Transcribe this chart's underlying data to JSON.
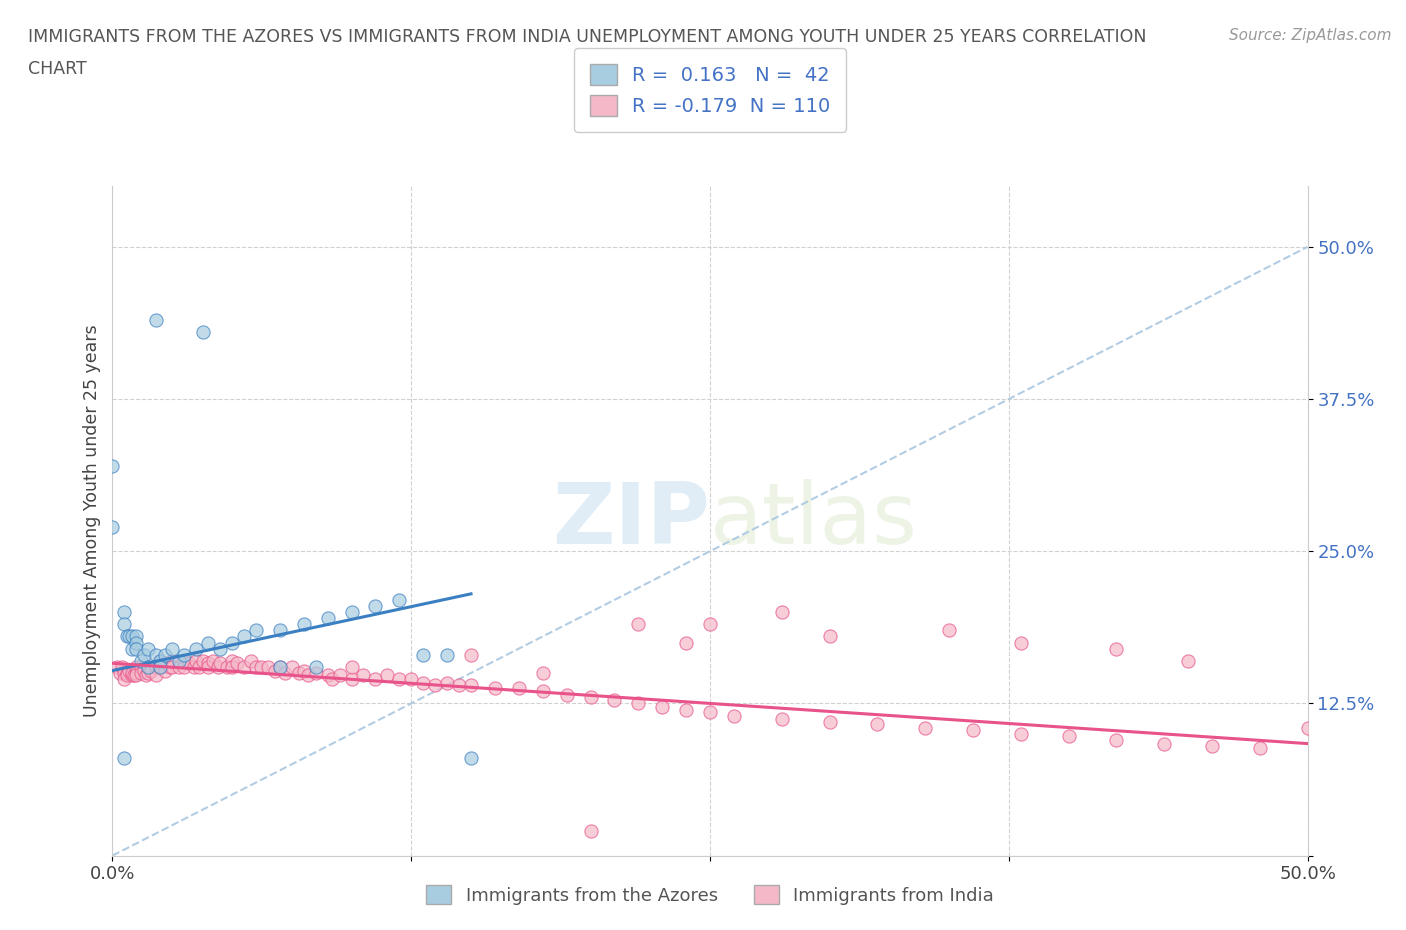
{
  "title_line1": "IMMIGRANTS FROM THE AZORES VS IMMIGRANTS FROM INDIA UNEMPLOYMENT AMONG YOUTH UNDER 25 YEARS CORRELATION",
  "title_line2": "CHART",
  "source": "Source: ZipAtlas.com",
  "ylabel": "Unemployment Among Youth under 25 years",
  "xlim": [
    0.0,
    0.5
  ],
  "ylim": [
    0.0,
    0.55
  ],
  "xticks": [
    0.0,
    0.125,
    0.25,
    0.375,
    0.5
  ],
  "yticks": [
    0.0,
    0.125,
    0.25,
    0.375,
    0.5
  ],
  "legend_label1": "Immigrants from the Azores",
  "legend_label2": "Immigrants from India",
  "R1": 0.163,
  "N1": 42,
  "R2": -0.179,
  "N2": 110,
  "color_blue": "#a8cce0",
  "color_pink": "#f4b8c8",
  "line_blue": "#3a7fc1",
  "line_pink": "#e8538a",
  "dash_color": "#aac8e0",
  "watermark_color": "#cce4f0",
  "azores_x": [
    0.018,
    0.038,
    0.0,
    0.0,
    0.005,
    0.005,
    0.006,
    0.007,
    0.008,
    0.008,
    0.01,
    0.01,
    0.01,
    0.012,
    0.013,
    0.015,
    0.015,
    0.018,
    0.02,
    0.02,
    0.022,
    0.025,
    0.028,
    0.03,
    0.035,
    0.04,
    0.045,
    0.05,
    0.055,
    0.06,
    0.07,
    0.08,
    0.09,
    0.1,
    0.11,
    0.12,
    0.13,
    0.14,
    0.15,
    0.07,
    0.085,
    0.005
  ],
  "azores_y": [
    0.44,
    0.43,
    0.32,
    0.27,
    0.2,
    0.19,
    0.18,
    0.18,
    0.18,
    0.17,
    0.18,
    0.175,
    0.17,
    0.16,
    0.165,
    0.17,
    0.155,
    0.165,
    0.16,
    0.155,
    0.165,
    0.17,
    0.16,
    0.165,
    0.17,
    0.175,
    0.17,
    0.175,
    0.18,
    0.185,
    0.185,
    0.19,
    0.195,
    0.2,
    0.205,
    0.21,
    0.165,
    0.165,
    0.08,
    0.155,
    0.155,
    0.08
  ],
  "india_x": [
    0.002,
    0.003,
    0.004,
    0.005,
    0.005,
    0.006,
    0.006,
    0.007,
    0.008,
    0.008,
    0.009,
    0.01,
    0.01,
    0.01,
    0.012,
    0.012,
    0.013,
    0.014,
    0.015,
    0.015,
    0.016,
    0.018,
    0.018,
    0.02,
    0.02,
    0.022,
    0.022,
    0.024,
    0.025,
    0.025,
    0.028,
    0.03,
    0.03,
    0.032,
    0.034,
    0.035,
    0.036,
    0.038,
    0.04,
    0.04,
    0.042,
    0.044,
    0.045,
    0.048,
    0.05,
    0.05,
    0.052,
    0.055,
    0.058,
    0.06,
    0.062,
    0.065,
    0.068,
    0.07,
    0.072,
    0.075,
    0.078,
    0.08,
    0.082,
    0.085,
    0.09,
    0.092,
    0.095,
    0.1,
    0.105,
    0.11,
    0.115,
    0.12,
    0.125,
    0.13,
    0.135,
    0.14,
    0.145,
    0.15,
    0.16,
    0.17,
    0.18,
    0.19,
    0.2,
    0.21,
    0.22,
    0.23,
    0.24,
    0.25,
    0.26,
    0.28,
    0.3,
    0.32,
    0.34,
    0.36,
    0.38,
    0.4,
    0.42,
    0.44,
    0.46,
    0.48,
    0.25,
    0.28,
    0.3,
    0.35,
    0.38,
    0.42,
    0.45,
    0.5,
    0.2,
    0.22,
    0.24,
    0.15,
    0.18,
    0.1
  ],
  "india_y": [
    0.155,
    0.15,
    0.155,
    0.15,
    0.145,
    0.15,
    0.148,
    0.152,
    0.148,
    0.15,
    0.148,
    0.155,
    0.15,
    0.148,
    0.155,
    0.15,
    0.152,
    0.148,
    0.155,
    0.15,
    0.152,
    0.155,
    0.148,
    0.16,
    0.155,
    0.158,
    0.152,
    0.155,
    0.16,
    0.155,
    0.155,
    0.16,
    0.155,
    0.158,
    0.155,
    0.16,
    0.155,
    0.16,
    0.158,
    0.155,
    0.16,
    0.155,
    0.158,
    0.155,
    0.16,
    0.155,
    0.158,
    0.155,
    0.16,
    0.155,
    0.155,
    0.155,
    0.152,
    0.155,
    0.15,
    0.155,
    0.15,
    0.152,
    0.148,
    0.15,
    0.148,
    0.145,
    0.148,
    0.145,
    0.148,
    0.145,
    0.148,
    0.145,
    0.145,
    0.142,
    0.14,
    0.142,
    0.14,
    0.14,
    0.138,
    0.138,
    0.135,
    0.132,
    0.13,
    0.128,
    0.125,
    0.122,
    0.12,
    0.118,
    0.115,
    0.112,
    0.11,
    0.108,
    0.105,
    0.103,
    0.1,
    0.098,
    0.095,
    0.092,
    0.09,
    0.088,
    0.19,
    0.2,
    0.18,
    0.185,
    0.175,
    0.17,
    0.16,
    0.105,
    0.02,
    0.19,
    0.175,
    0.165,
    0.15,
    0.155
  ],
  "az_line_x": [
    0.0,
    0.15
  ],
  "az_line_y": [
    0.152,
    0.215
  ],
  "ind_line_x": [
    0.0,
    0.5
  ],
  "ind_line_y": [
    0.158,
    0.092
  ]
}
